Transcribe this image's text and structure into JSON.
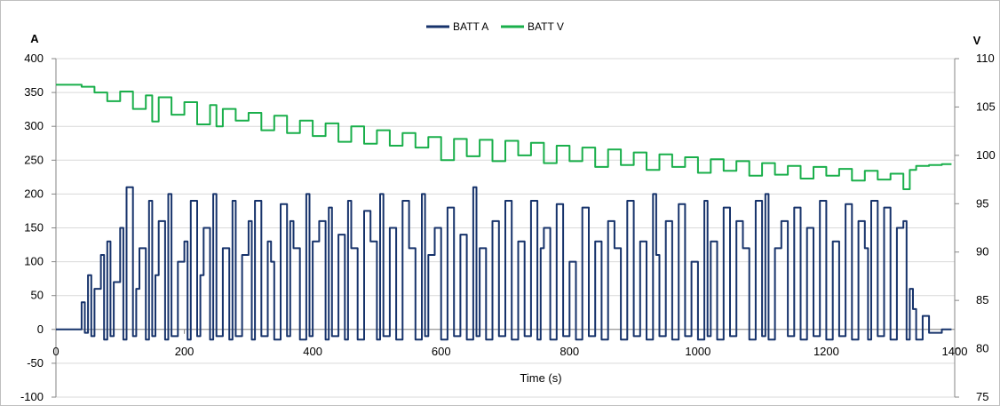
{
  "chart_data": {
    "type": "line",
    "xlabel": "Time (s)",
    "ylabel_left": "A",
    "ylabel_right": "V",
    "xlim": [
      0,
      1400
    ],
    "ylim_left": [
      -100,
      400
    ],
    "ylim_right": [
      75,
      110
    ],
    "x_ticks": [
      0,
      200,
      400,
      600,
      800,
      1000,
      1200,
      1400
    ],
    "y_left_ticks": [
      -100,
      -50,
      0,
      50,
      100,
      150,
      200,
      250,
      300,
      350,
      400
    ],
    "y_right_ticks": [
      75,
      80,
      85,
      90,
      95,
      100,
      105,
      110
    ],
    "grid": true,
    "legend_position": "top",
    "series": [
      {
        "name": "BATT A",
        "axis": "left",
        "color": "#17336b",
        "x": [
          0,
          30,
          40,
          45,
          50,
          55,
          60,
          70,
          75,
          80,
          85,
          90,
          100,
          105,
          110,
          120,
          125,
          130,
          140,
          145,
          150,
          155,
          160,
          170,
          175,
          180,
          190,
          200,
          205,
          210,
          220,
          225,
          230,
          240,
          245,
          250,
          260,
          270,
          275,
          280,
          290,
          300,
          305,
          310,
          320,
          330,
          335,
          340,
          350,
          360,
          365,
          370,
          380,
          390,
          395,
          400,
          410,
          420,
          425,
          430,
          440,
          450,
          455,
          460,
          470,
          480,
          490,
          500,
          505,
          510,
          520,
          530,
          540,
          550,
          560,
          570,
          575,
          580,
          590,
          600,
          610,
          620,
          630,
          640,
          650,
          655,
          660,
          670,
          680,
          690,
          700,
          710,
          720,
          730,
          740,
          750,
          755,
          760,
          770,
          780,
          790,
          800,
          810,
          820,
          830,
          840,
          850,
          860,
          870,
          880,
          890,
          900,
          910,
          920,
          930,
          935,
          940,
          950,
          960,
          970,
          980,
          990,
          1000,
          1010,
          1015,
          1020,
          1030,
          1040,
          1050,
          1060,
          1070,
          1080,
          1090,
          1100,
          1105,
          1110,
          1120,
          1130,
          1140,
          1150,
          1160,
          1170,
          1180,
          1190,
          1200,
          1210,
          1220,
          1230,
          1240,
          1250,
          1260,
          1265,
          1270,
          1280,
          1290,
          1300,
          1310,
          1320,
          1325,
          1330,
          1335,
          1340,
          1350,
          1360,
          1380,
          1395
        ],
        "values": [
          0,
          0,
          40,
          -5,
          80,
          -10,
          60,
          110,
          -15,
          130,
          -10,
          70,
          150,
          -15,
          210,
          -10,
          60,
          120,
          -15,
          190,
          -10,
          80,
          160,
          -15,
          200,
          -10,
          100,
          130,
          -15,
          190,
          -10,
          80,
          150,
          -15,
          200,
          -10,
          120,
          -15,
          190,
          -10,
          110,
          160,
          -15,
          190,
          -10,
          130,
          100,
          -15,
          185,
          -10,
          160,
          120,
          -15,
          200,
          -10,
          130,
          160,
          -15,
          180,
          -10,
          140,
          -15,
          190,
          120,
          -15,
          175,
          130,
          -15,
          200,
          -10,
          150,
          -15,
          190,
          120,
          -15,
          200,
          -10,
          110,
          150,
          -15,
          180,
          -10,
          140,
          -15,
          210,
          -10,
          120,
          -15,
          160,
          -10,
          190,
          -15,
          130,
          -10,
          190,
          -15,
          120,
          150,
          -15,
          185,
          -10,
          100,
          -15,
          180,
          -10,
          130,
          -15,
          160,
          120,
          -15,
          190,
          -10,
          130,
          -15,
          200,
          110,
          -10,
          160,
          -15,
          185,
          -10,
          100,
          -15,
          190,
          -10,
          130,
          -15,
          180,
          -10,
          160,
          120,
          -15,
          190,
          -10,
          200,
          -15,
          120,
          160,
          -10,
          180,
          -15,
          150,
          -10,
          190,
          -15,
          130,
          -10,
          185,
          -15,
          160,
          120,
          -15,
          190,
          -10,
          180,
          -15,
          150,
          160,
          -15,
          60,
          30,
          -15,
          20,
          -5,
          0,
          0
        ]
      },
      {
        "name": "BATT V",
        "axis": "right",
        "color": "#1aaf4b",
        "x": [
          0,
          40,
          60,
          80,
          100,
          120,
          140,
          150,
          160,
          180,
          200,
          220,
          240,
          250,
          260,
          280,
          300,
          320,
          340,
          360,
          380,
          400,
          420,
          440,
          460,
          480,
          500,
          520,
          540,
          560,
          580,
          600,
          620,
          640,
          660,
          680,
          700,
          720,
          740,
          760,
          780,
          800,
          820,
          840,
          860,
          880,
          900,
          920,
          940,
          960,
          980,
          1000,
          1020,
          1040,
          1060,
          1080,
          1100,
          1120,
          1140,
          1160,
          1180,
          1200,
          1220,
          1240,
          1260,
          1280,
          1300,
          1320,
          1330,
          1340,
          1360,
          1380,
          1395
        ],
        "values": [
          107.3,
          107.1,
          106.5,
          105.6,
          106.6,
          104.8,
          106.2,
          103.5,
          106.0,
          104.2,
          105.5,
          103.2,
          105.2,
          103.0,
          104.8,
          103.6,
          104.4,
          102.6,
          104.1,
          102.3,
          103.6,
          102.0,
          103.3,
          101.4,
          103.0,
          101.2,
          102.6,
          101.0,
          102.3,
          100.8,
          101.9,
          99.5,
          101.7,
          99.9,
          101.6,
          99.4,
          101.5,
          100.0,
          101.3,
          99.2,
          101.0,
          99.4,
          100.8,
          98.8,
          100.6,
          99.0,
          100.3,
          98.5,
          100.1,
          98.8,
          99.8,
          98.2,
          99.6,
          98.4,
          99.4,
          97.9,
          99.2,
          98.0,
          98.9,
          97.6,
          98.8,
          97.9,
          98.6,
          97.4,
          98.4,
          97.5,
          98.1,
          96.5,
          98.5,
          98.9,
          99.0,
          99.1,
          99.1
        ]
      }
    ]
  }
}
